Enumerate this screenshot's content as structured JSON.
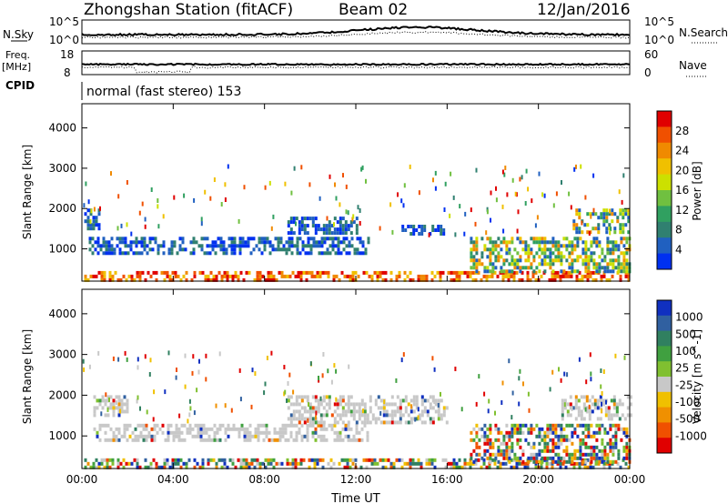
{
  "header": {
    "title": "Zhongshan Station (fitACF)",
    "beam": "Beam 02",
    "date": "12/Jan/2016"
  },
  "strip_labels": {
    "nsky": "N.Sky",
    "nsearch": "N.Search",
    "freq": "Freq.",
    "freq_unit": "[MHz]",
    "nave": "Nave",
    "cpid": "CPID",
    "cpid_value": "normal (fast stereo) 153"
  },
  "strip_ticks": {
    "noise_left": [
      "10^5",
      "10^0"
    ],
    "noise_right": [
      "10^5",
      "10^0"
    ],
    "freq_left": [
      "18",
      "8"
    ],
    "nave_right": [
      "60",
      "0"
    ]
  },
  "chart_data": [
    {
      "type": "heatmap",
      "panel": "power",
      "ylabel": "Slant Range [km]",
      "xlabel": "",
      "x_ticks": [
        "00:00",
        "04:00",
        "08:00",
        "12:00",
        "16:00",
        "20:00",
        "00:00"
      ],
      "y_ticks": [
        1000,
        2000,
        3000,
        4000
      ],
      "ylim": [
        200,
        4600
      ],
      "colorbar": {
        "label": "Power [dB]",
        "ticks": [
          "28",
          "24",
          "20",
          "16",
          "12",
          "8",
          "4"
        ],
        "colors": [
          "#e00000",
          "#f05000",
          "#f08a00",
          "#f0c000",
          "#cce000",
          "#70c040",
          "#30a060",
          "#308070",
          "#2060c0",
          "#0030f0"
        ]
      },
      "bands": [
        {
          "t0": 0.1,
          "t1": 24,
          "r0": 250,
          "r1": 450,
          "level": "high"
        },
        {
          "t0": 0.3,
          "t1": 12.5,
          "r0": 900,
          "r1": 1300,
          "level": "low"
        },
        {
          "t0": 9.0,
          "t1": 12.0,
          "r0": 1350,
          "r1": 1800,
          "level": "low"
        },
        {
          "t0": 14.0,
          "t1": 16.0,
          "r0": 1350,
          "r1": 1600,
          "level": "low"
        },
        {
          "t0": 17.0,
          "t1": 24,
          "r0": 400,
          "r1": 1300,
          "level": "mid"
        },
        {
          "t0": 21.5,
          "t1": 24,
          "r0": 1400,
          "r1": 2000,
          "level": "mid"
        },
        {
          "t0": 0.1,
          "t1": 0.8,
          "r0": 1500,
          "r1": 2000,
          "level": "low"
        }
      ]
    },
    {
      "type": "heatmap",
      "panel": "velocity",
      "ylabel": "Slant Range [km]",
      "xlabel": "Time UT",
      "x_ticks": [
        "00:00",
        "04:00",
        "08:00",
        "12:00",
        "16:00",
        "20:00",
        "00:00"
      ],
      "y_ticks": [
        1000,
        2000,
        3000,
        4000
      ],
      "ylim": [
        200,
        4600
      ],
      "colorbar": {
        "label": "Velocity [m s^-1]",
        "ticks": [
          "1000",
          "500",
          "100",
          "25",
          "-25",
          "-100",
          "-500",
          "-1000"
        ],
        "colors": [
          "#1030c0",
          "#3060a0",
          "#308060",
          "#40a040",
          "#80c030",
          "#c8c8c8",
          "#f0c000",
          "#f09000",
          "#f05000",
          "#e00000"
        ]
      },
      "bands": [
        {
          "t0": 0.1,
          "t1": 24,
          "r0": 250,
          "r1": 450,
          "level": "mixed"
        },
        {
          "t0": 0.5,
          "t1": 12.5,
          "r0": 900,
          "r1": 1300,
          "level": "gray"
        },
        {
          "t0": 0.5,
          "t1": 2.0,
          "r0": 1500,
          "r1": 2000,
          "level": "gray"
        },
        {
          "t0": 9.0,
          "t1": 16.0,
          "r0": 1300,
          "r1": 2000,
          "level": "gray"
        },
        {
          "t0": 17.0,
          "t1": 24,
          "r0": 400,
          "r1": 1300,
          "level": "mixed"
        },
        {
          "t0": 21.0,
          "t1": 24,
          "r0": 1400,
          "r1": 2000,
          "level": "gray"
        }
      ]
    }
  ]
}
